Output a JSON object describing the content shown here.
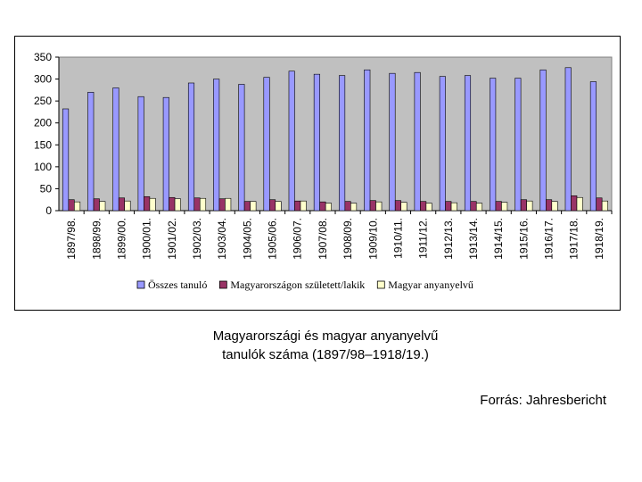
{
  "chart_data": {
    "type": "bar",
    "title": "",
    "xlabel": "",
    "ylabel": "",
    "ylim": [
      0,
      350
    ],
    "yticks": [
      0,
      50,
      100,
      150,
      200,
      250,
      300,
      350
    ],
    "grid": false,
    "legend": "bottom",
    "categories": [
      "1897/98.",
      "1898/99.",
      "1899/00.",
      "1900/01.",
      "1901/02.",
      "1902/03.",
      "1903/04.",
      "1904/05.",
      "1905/06.",
      "1906/07.",
      "1907/08.",
      "1908/09.",
      "1909/10.",
      "1910/11.",
      "1911/12.",
      "1912/13.",
      "1913/14.",
      "1914/15.",
      "1915/16.",
      "1916/17.",
      "1917/18.",
      "1918/19."
    ],
    "series": [
      {
        "name": "Összes tanuló",
        "color": "#9999ff",
        "values": [
          232,
          270,
          280,
          260,
          258,
          291,
          300,
          288,
          304,
          318,
          311,
          308,
          321,
          313,
          315,
          306,
          308,
          302,
          302,
          321,
          326,
          294
        ]
      },
      {
        "name": "Magyarországon született/lakik",
        "color": "#993366",
        "values": [
          25,
          27,
          29,
          32,
          30,
          29,
          27,
          21,
          25,
          22,
          20,
          21,
          23,
          23,
          21,
          21,
          21,
          21,
          25,
          25,
          34,
          29
        ]
      },
      {
        "name": "Magyar anyanyelvű",
        "color": "#ffffcc",
        "values": [
          20,
          21,
          22,
          28,
          27,
          28,
          28,
          21,
          21,
          22,
          17,
          17,
          20,
          19,
          17,
          18,
          17,
          19,
          22,
          21,
          30,
          22
        ]
      }
    ]
  },
  "caption": {
    "line1": "Magyarországi és magyar anyanyelvű",
    "line2": "tanulók száma (1897/98–1918/19.)"
  },
  "source": "Forrás: Jahresbericht"
}
